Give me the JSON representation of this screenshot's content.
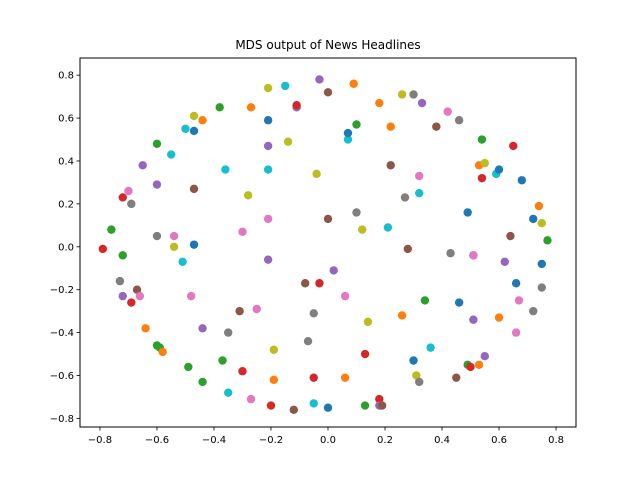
{
  "chart_data": {
    "type": "scatter",
    "title": "MDS output of News Headlines",
    "xlabel": "",
    "ylabel": "",
    "xlim": [
      -0.87,
      0.87
    ],
    "ylim": [
      -0.84,
      0.88
    ],
    "xticks": [
      -0.8,
      -0.6,
      -0.4,
      -0.2,
      0.0,
      0.2,
      0.4,
      0.6,
      0.8
    ],
    "yticks": [
      -0.8,
      -0.6,
      -0.4,
      -0.2,
      0.0,
      0.2,
      0.4,
      0.6,
      0.8
    ],
    "xtick_labels": [
      "−0.8",
      "−0.6",
      "−0.4",
      "−0.2",
      "0.0",
      "0.2",
      "0.4",
      "0.6",
      "0.8"
    ],
    "ytick_labels": [
      "−0.8",
      "−0.6",
      "−0.4",
      "−0.2",
      "0.0",
      "0.2",
      "0.4",
      "0.6",
      "0.8"
    ],
    "grid": false,
    "palette": [
      "#1f77b4",
      "#ff7f0e",
      "#2ca02c",
      "#d62728",
      "#9467bd",
      "#8c564b",
      "#e377c2",
      "#7f7f7f",
      "#bcbd22",
      "#17becf"
    ],
    "points": [
      {
        "x": -0.79,
        "y": -0.01,
        "c": 3
      },
      {
        "x": -0.76,
        "y": 0.08,
        "c": 2
      },
      {
        "x": -0.72,
        "y": 0.23,
        "c": 3
      },
      {
        "x": -0.7,
        "y": 0.26,
        "c": 6
      },
      {
        "x": -0.69,
        "y": 0.2,
        "c": 7
      },
      {
        "x": -0.73,
        "y": -0.16,
        "c": 7
      },
      {
        "x": -0.72,
        "y": -0.04,
        "c": 2
      },
      {
        "x": -0.72,
        "y": -0.23,
        "c": 4
      },
      {
        "x": -0.69,
        "y": -0.26,
        "c": 3
      },
      {
        "x": -0.67,
        "y": -0.2,
        "c": 5
      },
      {
        "x": -0.66,
        "y": -0.23,
        "c": 6
      },
      {
        "x": -0.65,
        "y": 0.38,
        "c": 4
      },
      {
        "x": -0.6,
        "y": 0.48,
        "c": 2
      },
      {
        "x": -0.6,
        "y": 0.29,
        "c": 4
      },
      {
        "x": -0.6,
        "y": 0.05,
        "c": 7
      },
      {
        "x": -0.6,
        "y": -0.46,
        "c": 2
      },
      {
        "x": -0.59,
        "y": -0.47,
        "c": 2
      },
      {
        "x": -0.58,
        "y": -0.49,
        "c": 1
      },
      {
        "x": -0.64,
        "y": -0.38,
        "c": 1
      },
      {
        "x": -0.55,
        "y": 0.43,
        "c": 9
      },
      {
        "x": -0.54,
        "y": 0.05,
        "c": 6
      },
      {
        "x": -0.54,
        "y": 0.0,
        "c": 8
      },
      {
        "x": -0.51,
        "y": -0.07,
        "c": 9
      },
      {
        "x": -0.5,
        "y": 0.55,
        "c": 9
      },
      {
        "x": -0.47,
        "y": 0.61,
        "c": 8
      },
      {
        "x": -0.47,
        "y": 0.54,
        "c": 0
      },
      {
        "x": -0.47,
        "y": 0.27,
        "c": 5
      },
      {
        "x": -0.47,
        "y": 0.01,
        "c": 0
      },
      {
        "x": -0.48,
        "y": -0.23,
        "c": 6
      },
      {
        "x": -0.49,
        "y": -0.56,
        "c": 2
      },
      {
        "x": -0.44,
        "y": 0.59,
        "c": 1
      },
      {
        "x": -0.44,
        "y": -0.38,
        "c": 4
      },
      {
        "x": -0.44,
        "y": -0.63,
        "c": 2
      },
      {
        "x": -0.38,
        "y": 0.65,
        "c": 2
      },
      {
        "x": -0.36,
        "y": 0.36,
        "c": 9
      },
      {
        "x": -0.37,
        "y": -0.53,
        "c": 2
      },
      {
        "x": -0.35,
        "y": -0.4,
        "c": 7
      },
      {
        "x": -0.35,
        "y": -0.68,
        "c": 9
      },
      {
        "x": -0.31,
        "y": -0.3,
        "c": 5
      },
      {
        "x": -0.3,
        "y": 0.07,
        "c": 6
      },
      {
        "x": -0.3,
        "y": -0.58,
        "c": 3
      },
      {
        "x": -0.28,
        "y": 0.24,
        "c": 8
      },
      {
        "x": -0.27,
        "y": 0.65,
        "c": 1
      },
      {
        "x": -0.27,
        "y": -0.71,
        "c": 6
      },
      {
        "x": -0.25,
        "y": -0.29,
        "c": 6
      },
      {
        "x": -0.21,
        "y": 0.74,
        "c": 8
      },
      {
        "x": -0.21,
        "y": 0.59,
        "c": 0
      },
      {
        "x": -0.21,
        "y": 0.47,
        "c": 4
      },
      {
        "x": -0.21,
        "y": 0.36,
        "c": 9
      },
      {
        "x": -0.21,
        "y": 0.13,
        "c": 6
      },
      {
        "x": -0.21,
        "y": -0.06,
        "c": 4
      },
      {
        "x": -0.2,
        "y": -0.74,
        "c": 3
      },
      {
        "x": -0.19,
        "y": -0.48,
        "c": 8
      },
      {
        "x": -0.19,
        "y": -0.62,
        "c": 1
      },
      {
        "x": -0.15,
        "y": 0.75,
        "c": 9
      },
      {
        "x": -0.14,
        "y": 0.49,
        "c": 8
      },
      {
        "x": -0.12,
        "y": -0.76,
        "c": 5
      },
      {
        "x": -0.11,
        "y": 0.65,
        "c": 4
      },
      {
        "x": -0.11,
        "y": 0.66,
        "c": 3
      },
      {
        "x": -0.08,
        "y": -0.17,
        "c": 5
      },
      {
        "x": -0.07,
        "y": -0.44,
        "c": 7
      },
      {
        "x": -0.05,
        "y": -0.31,
        "c": 7
      },
      {
        "x": -0.05,
        "y": -0.61,
        "c": 3
      },
      {
        "x": -0.05,
        "y": -0.73,
        "c": 9
      },
      {
        "x": -0.04,
        "y": 0.34,
        "c": 8
      },
      {
        "x": -0.03,
        "y": 0.78,
        "c": 4
      },
      {
        "x": -0.03,
        "y": -0.17,
        "c": 3
      },
      {
        "x": 0.0,
        "y": 0.72,
        "c": 5
      },
      {
        "x": 0.0,
        "y": 0.13,
        "c": 5
      },
      {
        "x": 0.0,
        "y": -0.75,
        "c": 0
      },
      {
        "x": 0.02,
        "y": -0.11,
        "c": 4
      },
      {
        "x": 0.06,
        "y": -0.23,
        "c": 6
      },
      {
        "x": 0.06,
        "y": -0.61,
        "c": 1
      },
      {
        "x": 0.07,
        "y": 0.5,
        "c": 9
      },
      {
        "x": 0.07,
        "y": 0.53,
        "c": 0
      },
      {
        "x": 0.09,
        "y": 0.76,
        "c": 1
      },
      {
        "x": 0.1,
        "y": 0.57,
        "c": 2
      },
      {
        "x": 0.1,
        "y": 0.16,
        "c": 7
      },
      {
        "x": 0.12,
        "y": 0.08,
        "c": 8
      },
      {
        "x": 0.13,
        "y": -0.5,
        "c": 3
      },
      {
        "x": 0.13,
        "y": -0.74,
        "c": 2
      },
      {
        "x": 0.14,
        "y": -0.35,
        "c": 8
      },
      {
        "x": 0.18,
        "y": 0.67,
        "c": 1
      },
      {
        "x": 0.18,
        "y": -0.71,
        "c": 3
      },
      {
        "x": 0.18,
        "y": -0.74,
        "c": 4
      },
      {
        "x": 0.19,
        "y": -0.74,
        "c": 5
      },
      {
        "x": 0.21,
        "y": 0.09,
        "c": 9
      },
      {
        "x": 0.22,
        "y": 0.56,
        "c": 1
      },
      {
        "x": 0.22,
        "y": 0.38,
        "c": 5
      },
      {
        "x": 0.26,
        "y": 0.71,
        "c": 8
      },
      {
        "x": 0.26,
        "y": -0.32,
        "c": 1
      },
      {
        "x": 0.27,
        "y": 0.23,
        "c": 7
      },
      {
        "x": 0.28,
        "y": -0.01,
        "c": 5
      },
      {
        "x": 0.3,
        "y": 0.71,
        "c": 7
      },
      {
        "x": 0.3,
        "y": -0.53,
        "c": 0
      },
      {
        "x": 0.31,
        "y": -0.6,
        "c": 8
      },
      {
        "x": 0.32,
        "y": -0.63,
        "c": 7
      },
      {
        "x": 0.32,
        "y": 0.33,
        "c": 6
      },
      {
        "x": 0.32,
        "y": 0.25,
        "c": 9
      },
      {
        "x": 0.33,
        "y": 0.67,
        "c": 4
      },
      {
        "x": 0.34,
        "y": -0.25,
        "c": 2
      },
      {
        "x": 0.36,
        "y": -0.47,
        "c": 9
      },
      {
        "x": 0.38,
        "y": 0.56,
        "c": 5
      },
      {
        "x": 0.42,
        "y": 0.63,
        "c": 6
      },
      {
        "x": 0.43,
        "y": -0.03,
        "c": 7
      },
      {
        "x": 0.45,
        "y": -0.61,
        "c": 5
      },
      {
        "x": 0.46,
        "y": 0.59,
        "c": 7
      },
      {
        "x": 0.46,
        "y": -0.26,
        "c": 0
      },
      {
        "x": 0.49,
        "y": 0.16,
        "c": 0
      },
      {
        "x": 0.49,
        "y": -0.55,
        "c": 2
      },
      {
        "x": 0.5,
        "y": -0.56,
        "c": 3
      },
      {
        "x": 0.51,
        "y": -0.04,
        "c": 9
      },
      {
        "x": 0.51,
        "y": -0.04,
        "c": 6
      },
      {
        "x": 0.51,
        "y": -0.34,
        "c": 4
      },
      {
        "x": 0.53,
        "y": 0.38,
        "c": 1
      },
      {
        "x": 0.53,
        "y": -0.55,
        "c": 1
      },
      {
        "x": 0.54,
        "y": 0.5,
        "c": 2
      },
      {
        "x": 0.54,
        "y": 0.32,
        "c": 3
      },
      {
        "x": 0.55,
        "y": 0.39,
        "c": 8
      },
      {
        "x": 0.55,
        "y": -0.51,
        "c": 4
      },
      {
        "x": 0.59,
        "y": 0.34,
        "c": 9
      },
      {
        "x": 0.6,
        "y": 0.36,
        "c": 0
      },
      {
        "x": 0.6,
        "y": -0.33,
        "c": 1
      },
      {
        "x": 0.62,
        "y": -0.07,
        "c": 4
      },
      {
        "x": 0.64,
        "y": 0.05,
        "c": 5
      },
      {
        "x": 0.65,
        "y": 0.47,
        "c": 3
      },
      {
        "x": 0.66,
        "y": -0.17,
        "c": 0
      },
      {
        "x": 0.66,
        "y": -0.4,
        "c": 6
      },
      {
        "x": 0.67,
        "y": -0.25,
        "c": 6
      },
      {
        "x": 0.68,
        "y": 0.31,
        "c": 0
      },
      {
        "x": 0.72,
        "y": 0.13,
        "c": 0
      },
      {
        "x": 0.72,
        "y": -0.3,
        "c": 7
      },
      {
        "x": 0.74,
        "y": 0.19,
        "c": 1
      },
      {
        "x": 0.75,
        "y": 0.11,
        "c": 8
      },
      {
        "x": 0.75,
        "y": -0.19,
        "c": 7
      },
      {
        "x": 0.75,
        "y": -0.08,
        "c": 0
      },
      {
        "x": 0.77,
        "y": 0.03,
        "c": 2
      }
    ]
  }
}
